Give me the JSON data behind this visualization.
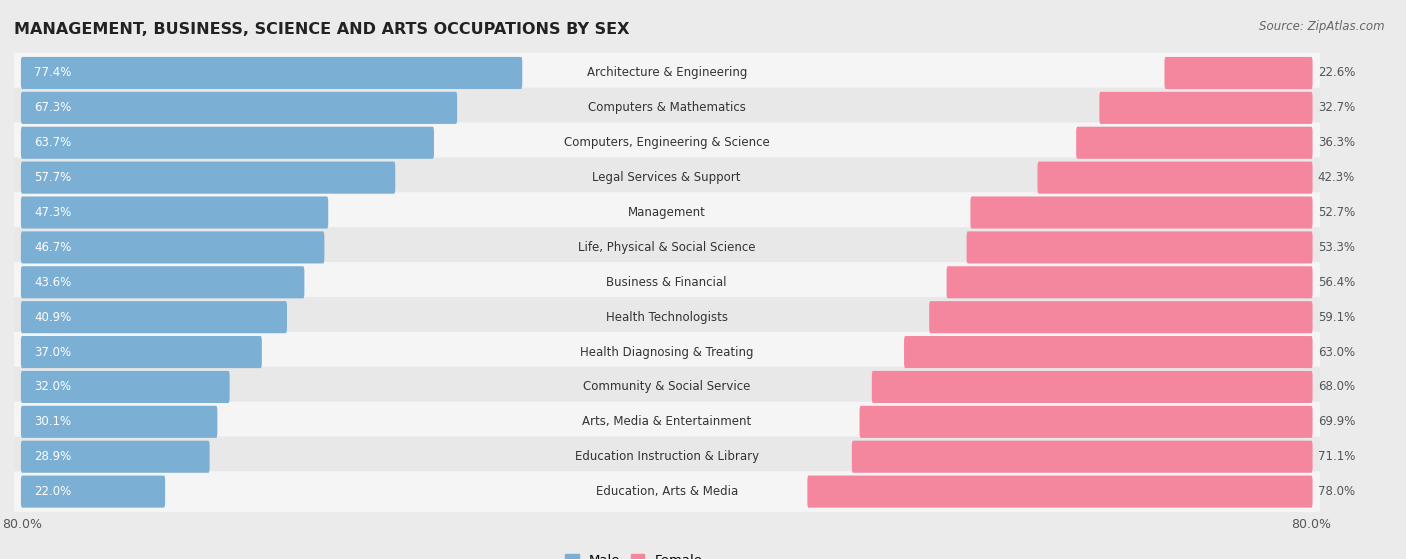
{
  "title": "MANAGEMENT, BUSINESS, SCIENCE AND ARTS OCCUPATIONS BY SEX",
  "source": "Source: ZipAtlas.com",
  "categories": [
    "Architecture & Engineering",
    "Computers & Mathematics",
    "Computers, Engineering & Science",
    "Legal Services & Support",
    "Management",
    "Life, Physical & Social Science",
    "Business & Financial",
    "Health Technologists",
    "Health Diagnosing & Treating",
    "Community & Social Service",
    "Arts, Media & Entertainment",
    "Education Instruction & Library",
    "Education, Arts & Media"
  ],
  "male_pct": [
    77.4,
    67.3,
    63.7,
    57.7,
    47.3,
    46.7,
    43.6,
    40.9,
    37.0,
    32.0,
    30.1,
    28.9,
    22.0
  ],
  "female_pct": [
    22.6,
    32.7,
    36.3,
    42.3,
    52.7,
    53.3,
    56.4,
    59.1,
    63.0,
    68.0,
    69.9,
    71.1,
    78.0
  ],
  "male_color": "#7bafd4",
  "female_color": "#f4879e",
  "bg_color": "#ebebeb",
  "row_bg_even": "#f5f5f5",
  "row_bg_odd": "#e8e8e8",
  "axis_limit": 80.0,
  "bar_height": 0.62,
  "label_fontsize": 8.5,
  "title_fontsize": 11.5,
  "source_fontsize": 8.5,
  "cat_fontsize": 8.5
}
